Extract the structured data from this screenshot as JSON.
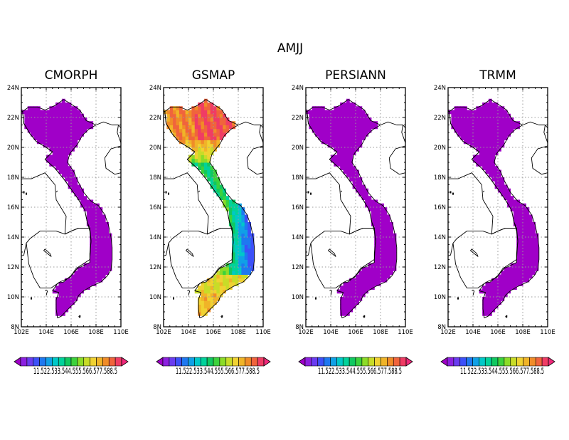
{
  "figure": {
    "title": "AMJJ",
    "panels": [
      {
        "title": "CMORPH",
        "field": "low"
      },
      {
        "title": "GSMAP",
        "field": "gsmap"
      },
      {
        "title": "PERSIANN",
        "field": "low"
      },
      {
        "title": "TRMM",
        "field": "low"
      }
    ],
    "lat_labels": [
      "24N",
      "22N",
      "20N",
      "18N",
      "16N",
      "14N",
      "12N",
      "10N",
      "8N"
    ],
    "lon_labels": [
      "102E",
      "104E",
      "106E",
      "108E",
      "110E"
    ],
    "lat_range": [
      8,
      24
    ],
    "lon_range": [
      102,
      110
    ],
    "grid": true,
    "colorbar": {
      "levels": [
        "1",
        "1.5",
        "2",
        "2.5",
        "3",
        "3.5",
        "4",
        "4.5",
        "5",
        "5.5",
        "6",
        "6.5",
        "7",
        "7.5",
        "8",
        "8.5"
      ],
      "label_text": "11.522.533.544.555.566.577.588.5",
      "colors": [
        "#a000c8",
        "#8c20e0",
        "#6a3cf0",
        "#3c50f8",
        "#1e78f0",
        "#10a0e6",
        "#00c8c8",
        "#00d29a",
        "#10c860",
        "#3cd23c",
        "#8cdc28",
        "#c8dc28",
        "#f0d232",
        "#f0b428",
        "#f08c28",
        "#f0643c",
        "#f03c64",
        "#f0287a"
      ]
    }
  }
}
